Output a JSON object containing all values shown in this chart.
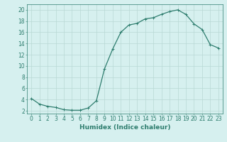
{
  "x": [
    0,
    1,
    2,
    3,
    4,
    5,
    6,
    7,
    8,
    9,
    10,
    11,
    12,
    13,
    14,
    15,
    16,
    17,
    18,
    19,
    20,
    21,
    22,
    23
  ],
  "y": [
    4.2,
    3.2,
    2.8,
    2.6,
    2.2,
    2.1,
    2.1,
    2.5,
    3.8,
    9.5,
    13.0,
    16.0,
    17.3,
    17.6,
    18.4,
    18.6,
    19.2,
    19.7,
    20.0,
    19.2,
    17.5,
    16.5,
    13.8,
    13.2
  ],
  "line_color": "#2e7d6e",
  "marker": "+",
  "marker_size": 3,
  "linewidth": 0.9,
  "bg_color": "#d6f0ef",
  "grid_color": "#b8d8d5",
  "tick_color": "#2e7d6e",
  "xlabel": "Humidex (Indice chaleur)",
  "xlabel_fontsize": 6.5,
  "ylabel_ticks": [
    2,
    4,
    6,
    8,
    10,
    12,
    14,
    16,
    18,
    20
  ],
  "xtick_labels": [
    "0",
    "1",
    "2",
    "3",
    "4",
    "5",
    "6",
    "7",
    "8",
    "9",
    "10",
    "11",
    "12",
    "13",
    "14",
    "15",
    "16",
    "17",
    "18",
    "19",
    "20",
    "21",
    "22",
    "23"
  ],
  "ylim": [
    1.5,
    21.0
  ],
  "xlim": [
    -0.5,
    23.5
  ],
  "tick_fontsize": 5.5
}
